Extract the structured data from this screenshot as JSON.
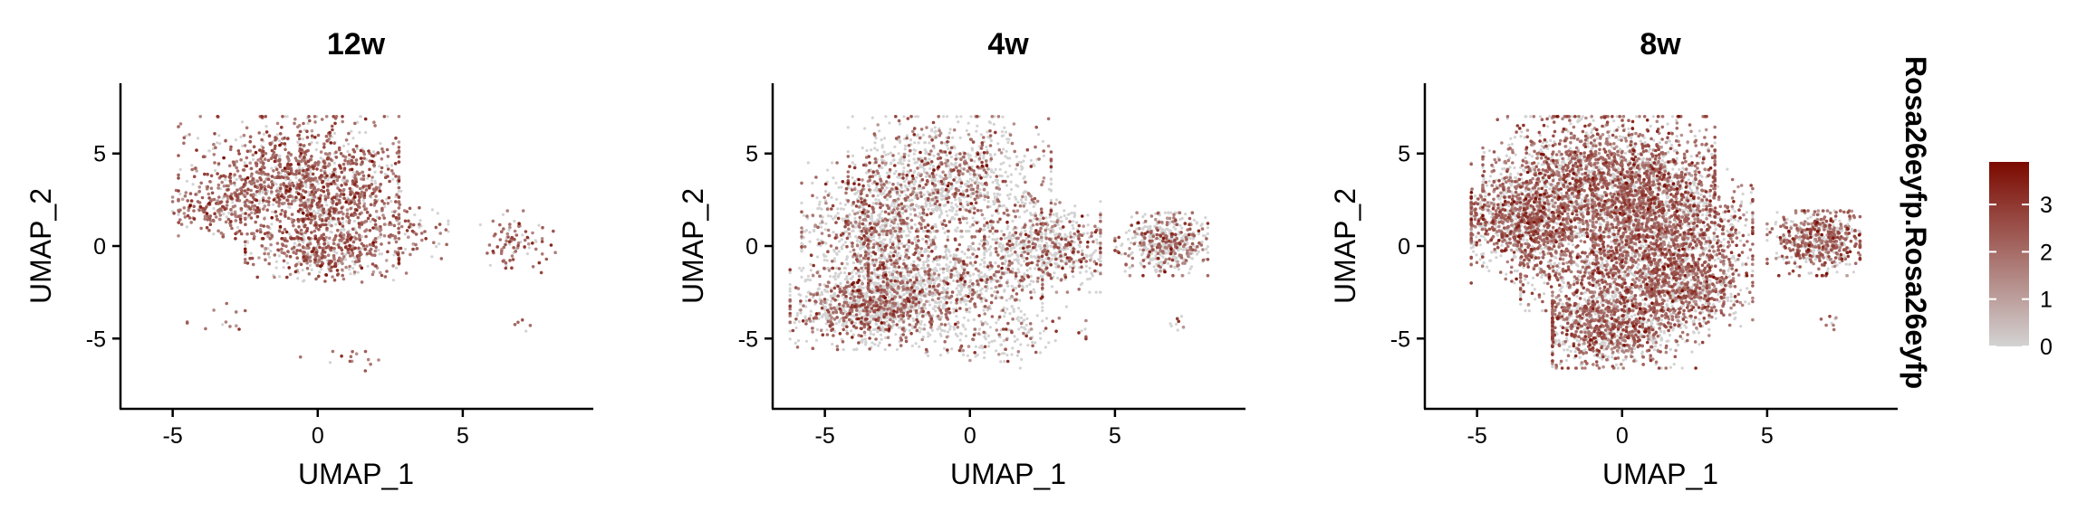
{
  "chart_data": {
    "type": "scatter",
    "subtype": "umap-feature-plot",
    "feature": "Rosa26eyfp.Rosa26eyfp",
    "xlabel": "UMAP_1",
    "ylabel": "UMAP_2",
    "xlim": [
      -6.8,
      9.5
    ],
    "ylim": [
      -8.8,
      8.8
    ],
    "xticks": [
      -5,
      0,
      5
    ],
    "xtick_labels": [
      "-5",
      "0",
      "5"
    ],
    "yticks": [
      -5,
      0,
      5
    ],
    "ytick_labels": [
      "-5",
      "0",
      "5"
    ],
    "colorbar": {
      "title": "Rosa26eyfp.Rosa26eyfp",
      "min": 0,
      "max": 3.9,
      "ticks": [
        0,
        1,
        2,
        3
      ],
      "tick_labels": [
        "0",
        "1",
        "2",
        "3"
      ],
      "low_color": "#d3d3d3",
      "high_color": "#7b0a00"
    },
    "panels": [
      {
        "title": "12w",
        "expressing_fraction": 0.72,
        "clusters": [
          {
            "cx": -0.5,
            "cy": 3.4,
            "sx": 1.7,
            "sy": 1.6,
            "n": 1300,
            "rx": [
              -4.8,
              2.8
            ],
            "ry": [
              0.4,
              7.0
            ]
          },
          {
            "cx": -3.4,
            "cy": 2.2,
            "sx": 0.8,
            "sy": 0.7,
            "n": 150,
            "rx": [
              -5.0,
              -2.0
            ],
            "ry": [
              0.5,
              3.8
            ]
          },
          {
            "cx": 1.2,
            "cy": 1.6,
            "sx": 1.0,
            "sy": 1.0,
            "n": 160,
            "rx": [
              -0.5,
              3.5
            ],
            "ry": [
              -0.5,
              4.0
            ]
          },
          {
            "cx": 0.2,
            "cy": -0.3,
            "sx": 1.3,
            "sy": 0.7,
            "n": 420,
            "rx": [
              -2.5,
              2.8
            ],
            "ry": [
              -2.2,
              1.5
            ]
          },
          {
            "cx": 3.3,
            "cy": 0.6,
            "sx": 0.7,
            "sy": 0.8,
            "n": 70,
            "rx": [
              2.0,
              4.5
            ],
            "ry": [
              -1.5,
              2.5
            ]
          },
          {
            "cx": 6.9,
            "cy": 0.2,
            "sx": 0.6,
            "sy": 0.7,
            "n": 90,
            "rx": [
              5.0,
              8.2
            ],
            "ry": [
              -1.5,
              1.9
            ]
          },
          {
            "cx": 0.8,
            "cy": -6.0,
            "sx": 1.0,
            "sy": 0.4,
            "n": 14,
            "rx": [
              -1.5,
              2.5
            ],
            "ry": [
              -6.8,
              -5.0
            ]
          },
          {
            "cx": -3.5,
            "cy": -3.9,
            "sx": 0.8,
            "sy": 0.5,
            "n": 12,
            "rx": [
              -4.5,
              -2.5
            ],
            "ry": [
              -4.5,
              -3.0
            ]
          },
          {
            "cx": 7.1,
            "cy": -4.2,
            "sx": 0.2,
            "sy": 0.2,
            "n": 5,
            "rx": [
              6.8,
              7.5
            ],
            "ry": [
              -4.6,
              -3.8
            ]
          }
        ]
      },
      {
        "title": "4w",
        "expressing_fraction": 0.36,
        "clusters": [
          {
            "cx": -0.8,
            "cy": 3.6,
            "sx": 1.6,
            "sy": 1.6,
            "n": 1100,
            "rx": [
              -4.2,
              2.8
            ],
            "ry": [
              0.8,
              7.0
            ]
          },
          {
            "cx": -3.3,
            "cy": 0.8,
            "sx": 1.2,
            "sy": 1.5,
            "n": 800,
            "rx": [
              -5.8,
              -0.5
            ],
            "ry": [
              -2.5,
              4.5
            ]
          },
          {
            "cx": -3.6,
            "cy": -3.2,
            "sx": 1.2,
            "sy": 1.0,
            "n": 1000,
            "rx": [
              -6.2,
              -0.8
            ],
            "ry": [
              -5.6,
              -1.2
            ]
          },
          {
            "cx": -0.8,
            "cy": -2.0,
            "sx": 1.7,
            "sy": 1.2,
            "n": 800,
            "rx": [
              -3.5,
              2.5
            ],
            "ry": [
              -4.5,
              0.5
            ]
          },
          {
            "cx": 2.6,
            "cy": 0.0,
            "sx": 1.1,
            "sy": 1.0,
            "n": 600,
            "rx": [
              0.5,
              4.5
            ],
            "ry": [
              -2.5,
              2.5
            ]
          },
          {
            "cx": 0.6,
            "cy": -4.8,
            "sx": 1.6,
            "sy": 0.8,
            "n": 200,
            "rx": [
              -3.0,
              4.0
            ],
            "ry": [
              -6.6,
              -3.0
            ]
          },
          {
            "cx": 6.8,
            "cy": 0.2,
            "sx": 0.7,
            "sy": 0.8,
            "n": 500,
            "rx": [
              5.0,
              8.2
            ],
            "ry": [
              -1.6,
              1.8
            ]
          },
          {
            "cx": 7.2,
            "cy": -4.2,
            "sx": 0.2,
            "sy": 0.2,
            "n": 8,
            "rx": [
              6.8,
              7.6
            ],
            "ry": [
              -4.7,
              -3.8
            ]
          }
        ]
      },
      {
        "title": "8w",
        "expressing_fraction": 0.6,
        "clusters": [
          {
            "cx": -0.5,
            "cy": 3.5,
            "sx": 1.9,
            "sy": 1.7,
            "n": 2200,
            "rx": [
              -4.8,
              3.2
            ],
            "ry": [
              0.5,
              7.0
            ]
          },
          {
            "cx": -3.4,
            "cy": 1.3,
            "sx": 1.1,
            "sy": 1.3,
            "n": 1100,
            "rx": [
              -5.2,
              -0.5
            ],
            "ry": [
              -2.0,
              4.5
            ]
          },
          {
            "cx": 1.6,
            "cy": 0.8,
            "sx": 1.4,
            "sy": 1.6,
            "n": 1200,
            "rx": [
              -1.0,
              4.5
            ],
            "ry": [
              -3.0,
              4.5
            ]
          },
          {
            "cx": 0.0,
            "cy": -1.5,
            "sx": 1.8,
            "sy": 1.2,
            "n": 1000,
            "rx": [
              -3.5,
              3.5
            ],
            "ry": [
              -3.5,
              1.0
            ]
          },
          {
            "cx": -0.5,
            "cy": -4.4,
            "sx": 1.4,
            "sy": 1.0,
            "n": 1100,
            "rx": [
              -2.4,
              3.0
            ],
            "ry": [
              -6.6,
              -2.5
            ]
          },
          {
            "cx": 2.5,
            "cy": -2.5,
            "sx": 0.9,
            "sy": 1.0,
            "n": 400,
            "rx": [
              1.0,
              4.5
            ],
            "ry": [
              -5.5,
              -0.5
            ]
          },
          {
            "cx": 6.8,
            "cy": 0.3,
            "sx": 0.8,
            "sy": 0.8,
            "n": 550,
            "rx": [
              5.0,
              8.2
            ],
            "ry": [
              -1.6,
              1.9
            ]
          },
          {
            "cx": 7.1,
            "cy": -4.1,
            "sx": 0.2,
            "sy": 0.2,
            "n": 8,
            "rx": [
              6.8,
              7.6
            ],
            "ry": [
              -4.6,
              -3.7
            ]
          }
        ]
      }
    ]
  }
}
